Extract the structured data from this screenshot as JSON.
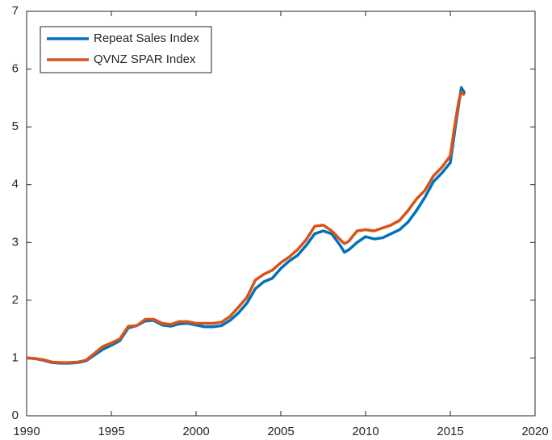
{
  "chart_data": {
    "type": "line",
    "x": [
      1990,
      1990.5,
      1991,
      1991.5,
      1992,
      1992.5,
      1993,
      1993.5,
      1994,
      1994.5,
      1995,
      1995.5,
      1996,
      1996.5,
      1997,
      1997.5,
      1998,
      1998.5,
      1999,
      1999.5,
      2000,
      2000.5,
      2001,
      2001.5,
      2002,
      2002.5,
      2003,
      2003.5,
      2004,
      2004.5,
      2005,
      2005.5,
      2006,
      2006.5,
      2007,
      2007.5,
      2008,
      2008.5,
      2008.75,
      2009,
      2009.5,
      2010,
      2010.5,
      2011,
      2011.5,
      2012,
      2012.5,
      2013,
      2013.5,
      2014,
      2014.5,
      2015,
      2015.25,
      2015.5,
      2015.65,
      2015.85
    ],
    "series": [
      {
        "name": "Repeat Sales Index",
        "color": "#0072bd",
        "values": [
          1.0,
          0.99,
          0.96,
          0.92,
          0.91,
          0.91,
          0.92,
          0.95,
          1.05,
          1.15,
          1.22,
          1.3,
          1.52,
          1.56,
          1.64,
          1.65,
          1.57,
          1.55,
          1.59,
          1.6,
          1.57,
          1.54,
          1.54,
          1.56,
          1.65,
          1.78,
          1.95,
          2.2,
          2.32,
          2.38,
          2.55,
          2.68,
          2.78,
          2.95,
          3.15,
          3.2,
          3.15,
          2.95,
          2.83,
          2.87,
          3.0,
          3.1,
          3.06,
          3.08,
          3.15,
          3.22,
          3.35,
          3.55,
          3.78,
          4.05,
          4.2,
          4.38,
          4.9,
          5.4,
          5.68,
          5.58
        ]
      },
      {
        "name": "QVNZ SPAR Index",
        "color": "#d95319",
        "values": [
          1.0,
          0.99,
          0.97,
          0.93,
          0.92,
          0.92,
          0.93,
          0.96,
          1.08,
          1.2,
          1.26,
          1.33,
          1.55,
          1.56,
          1.67,
          1.67,
          1.6,
          1.58,
          1.63,
          1.63,
          1.6,
          1.6,
          1.6,
          1.62,
          1.72,
          1.88,
          2.05,
          2.35,
          2.45,
          2.52,
          2.65,
          2.75,
          2.88,
          3.05,
          3.28,
          3.3,
          3.2,
          3.05,
          2.98,
          3.02,
          3.2,
          3.22,
          3.2,
          3.25,
          3.3,
          3.38,
          3.55,
          3.75,
          3.9,
          4.15,
          4.3,
          4.5,
          5.0,
          5.45,
          5.6,
          5.55
        ]
      }
    ],
    "xlim": [
      1990,
      2020
    ],
    "xticks": [
      1990,
      1995,
      2000,
      2005,
      2010,
      2015,
      2020
    ],
    "ylim": [
      0,
      7
    ],
    "yticks": [
      0,
      1,
      2,
      3,
      4,
      5,
      6,
      7
    ],
    "legend": "upper left"
  }
}
